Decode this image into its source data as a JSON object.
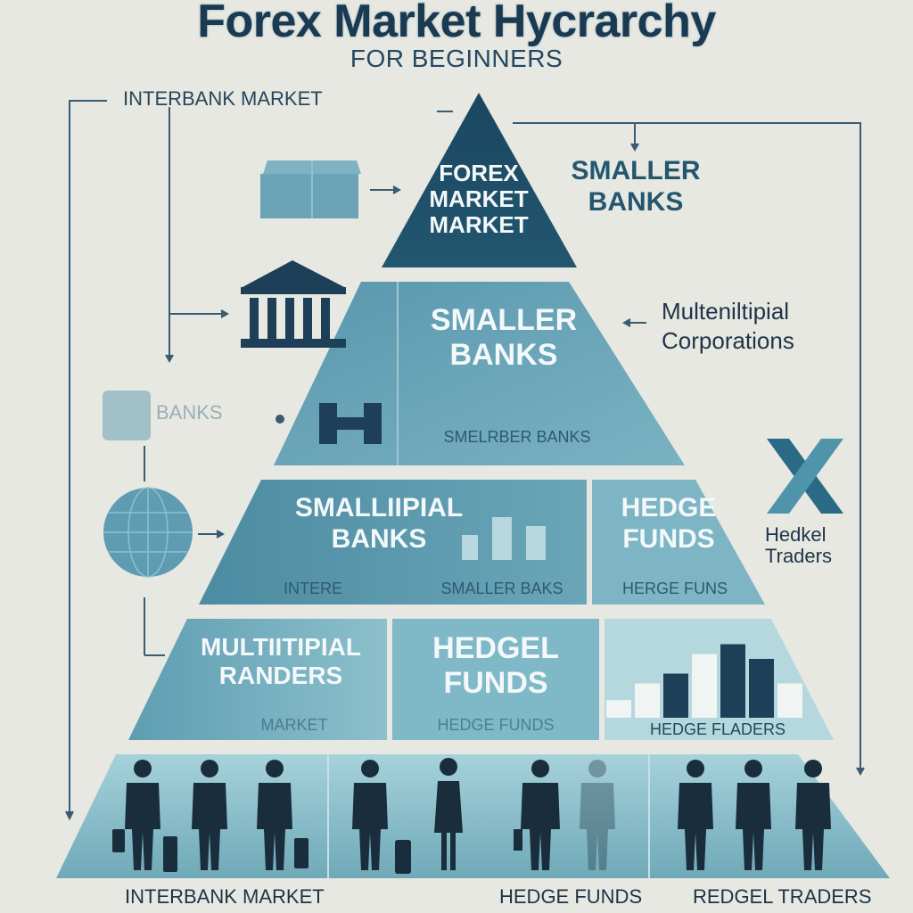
{
  "header": {
    "title": "Forex Market Hycrarchy",
    "subtitle": "FOR BEGINNERS"
  },
  "side_labels": {
    "interbank": "INTERBANK MARKET",
    "smaller_banks": "SMALLER\nBANKS",
    "corporations": "Multeniltipial\nCorporations",
    "banks_faded": "BANKS",
    "traders": "Hedkel\nTraders"
  },
  "tiers": {
    "top": {
      "label": "FOREX\nMARKET\nMARKET"
    },
    "second": {
      "label": "SMALLER\nBANKS",
      "caption": "SMELRBER BANKS"
    },
    "third": {
      "left": {
        "label": "SMALLIIPIAL\nBANKS",
        "caption_a": "INTERE",
        "caption_b": "SMALLER BAKS"
      },
      "right": {
        "label": "HEDGE\nFUNDS",
        "caption": "HERGE FUNS"
      }
    },
    "fourth": {
      "left": {
        "label": "MULTIITIPIAL\nRANDERS",
        "caption": "MARKET"
      },
      "middle": {
        "label": "HEDGEL\nFUNDS",
        "caption": "HEDGE FUNDS"
      },
      "right": {
        "caption": "HEDGE FLADERS",
        "bar_values": [
          0.18,
          0.35,
          0.45,
          0.65,
          0.75,
          0.6,
          0.35
        ]
      }
    }
  },
  "bottom_labels": {
    "left": "INTERBANK MARKET",
    "middle": "HEDGE FUNDS",
    "right": "REDGEL TRADERS"
  },
  "colors": {
    "tier_top": "#1d4a63",
    "tier_second": "#5e9bb0",
    "tier_third": "#4e8ca4",
    "tier_fourth": "#6aa6b8",
    "base": "#93c6d2",
    "connector": "#3a5c73"
  },
  "icons": [
    "warehouse-icon",
    "bank-building-icon",
    "hedge-logo-icon",
    "globe-icon",
    "x-logo-icon",
    "bar-chart-icon",
    "people-silhouettes-icon"
  ]
}
